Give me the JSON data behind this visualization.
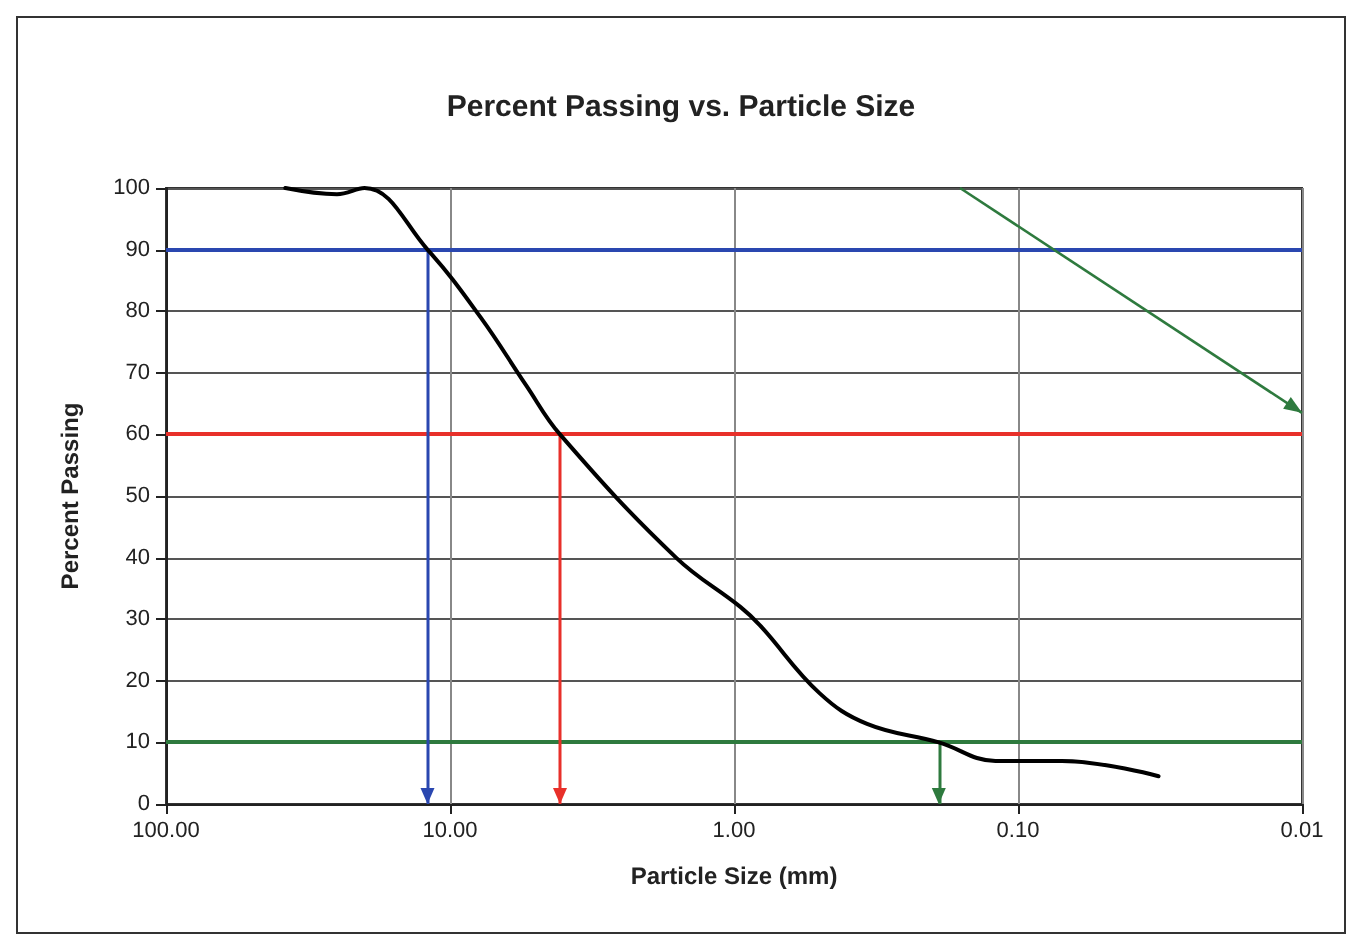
{
  "chart_data": {
    "type": "line",
    "title": "Percent Passing vs. Particle Size",
    "xlabel": "Particle Size (mm)",
    "ylabel": "Percent Passing",
    "log": "x",
    "grid": true,
    "marker": "none",
    "line_style": "solid",
    "xlim": [
      100,
      0.01
    ],
    "xticks": [
      {
        "value": 100,
        "label": "100.00"
      },
      {
        "value": 10,
        "label": "10.00"
      },
      {
        "value": 1,
        "label": "1.00"
      },
      {
        "value": 0.1,
        "label": "0.10"
      },
      {
        "value": 0.01,
        "label": "0.01"
      }
    ],
    "ylim": [
      0,
      100
    ],
    "yticks": [
      0,
      10,
      20,
      30,
      40,
      50,
      60,
      70,
      80,
      90,
      100
    ],
    "series": [
      {
        "color": "#000000",
        "x": [
          38,
          25,
          20,
          12,
          7.8,
          5.4,
          4.1,
          1.6,
          0.95,
          0.81,
          0.5,
          0.34,
          0.19,
          0.12,
          0.07,
          0.032
        ],
        "values": [
          100,
          99,
          100,
          90,
          79,
          68,
          60,
          40,
          32,
          29,
          18,
          13,
          10,
          7,
          7,
          4.5
        ]
      }
    ],
    "ref_lines": [
      {
        "axis": "y",
        "value": 90,
        "color": "#2a47b0"
      },
      {
        "axis": "y",
        "value": 60,
        "color": "#e8302a"
      },
      {
        "axis": "y",
        "value": 10,
        "color": "#2e7a3e"
      },
      {
        "axis": "x",
        "value": 12,
        "color": "#2a47b0"
      },
      {
        "axis": "x",
        "value": 4.1,
        "color": "#e8302a"
      },
      {
        "axis": "x",
        "value": 0.19,
        "color": "#2e7a3e"
      }
    ]
  }
}
